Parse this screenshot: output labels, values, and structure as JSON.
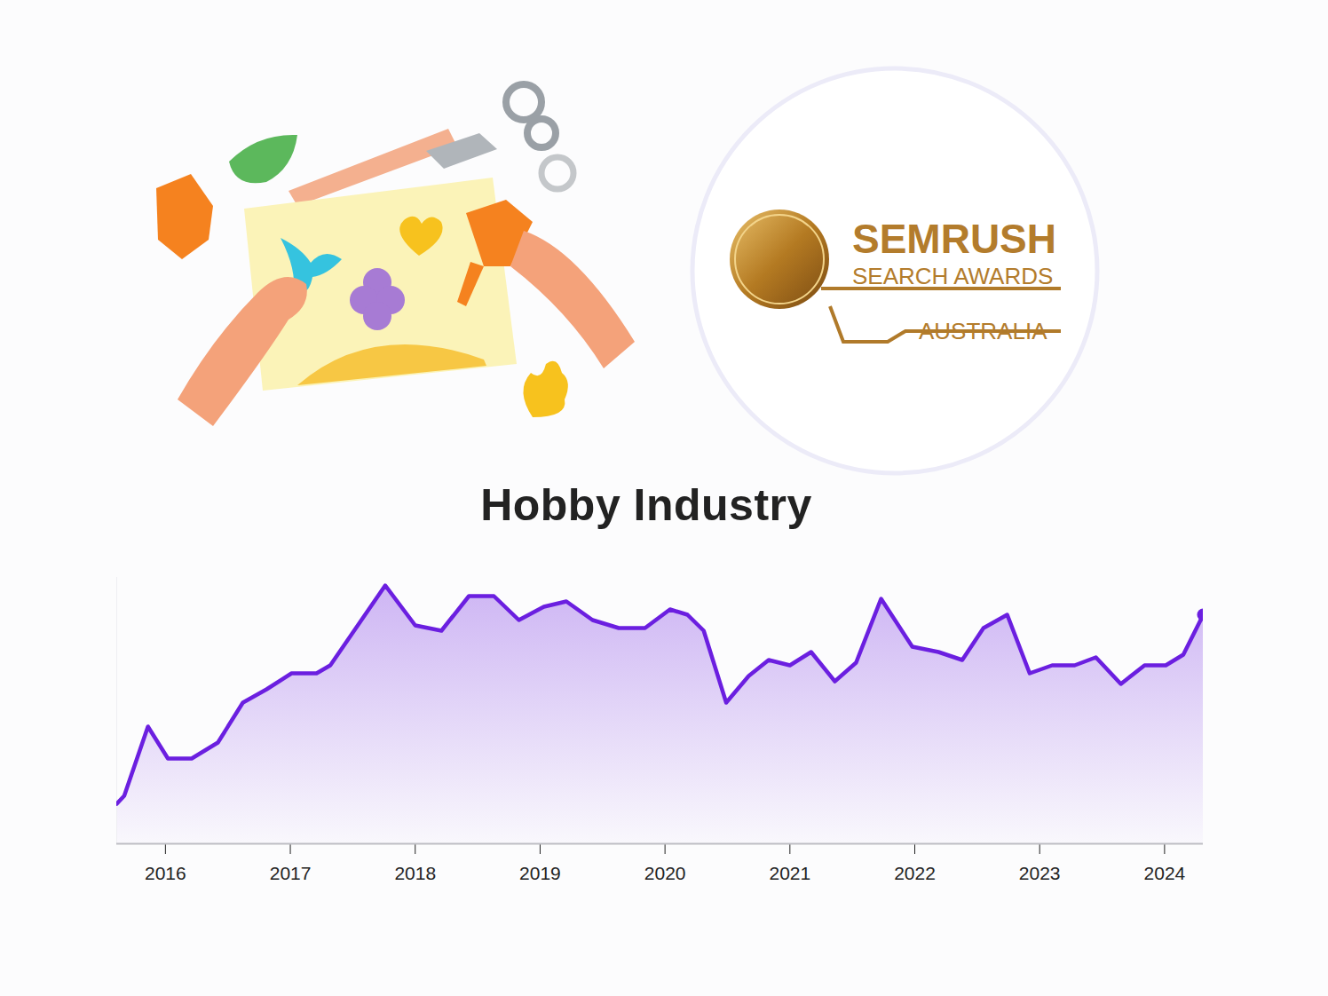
{
  "logo": {
    "title": "SEMRUSH",
    "subtitle": "SEARCH AWARDS",
    "region": "AUSTRALIA"
  },
  "chart_data": {
    "type": "area",
    "title": "Hobby Industry",
    "x": [
      2015.61,
      2015.67,
      2015.86,
      2016.02,
      2016.21,
      2016.42,
      2016.62,
      2016.81,
      2017.01,
      2017.21,
      2017.32,
      2017.76,
      2018.0,
      2018.21,
      2018.43,
      2018.63,
      2018.83,
      2019.03,
      2019.21,
      2019.42,
      2019.63,
      2019.84,
      2020.04,
      2020.18,
      2020.31,
      2020.49,
      2020.67,
      2020.83,
      2021.0,
      2021.17,
      2021.36,
      2021.53,
      2021.73,
      2021.98,
      2022.19,
      2022.38,
      2022.55,
      2022.74,
      2022.92,
      2023.1,
      2023.28,
      2023.45,
      2023.65,
      2023.84,
      2024.01,
      2024.15,
      2024.31
    ],
    "values": [
      15,
      18,
      44,
      32,
      32,
      38,
      53,
      58,
      64,
      64,
      67,
      97,
      82,
      80,
      93,
      93,
      84,
      89,
      91,
      84,
      81,
      81,
      88,
      86,
      80,
      53,
      63,
      69,
      67,
      72,
      61,
      68,
      92,
      74,
      72,
      69,
      81,
      86,
      64,
      67,
      67,
      70,
      60,
      67,
      67,
      71,
      86
    ],
    "color": "#6b1fe0",
    "xlim": [
      2015.61,
      2024.31
    ],
    "xticks": [
      2016,
      2017,
      2018,
      2019,
      2020,
      2021,
      2022,
      2023,
      2024
    ],
    "ylim": [
      0,
      100
    ],
    "tick_labels": "x",
    "grid": false,
    "marker": "last"
  }
}
